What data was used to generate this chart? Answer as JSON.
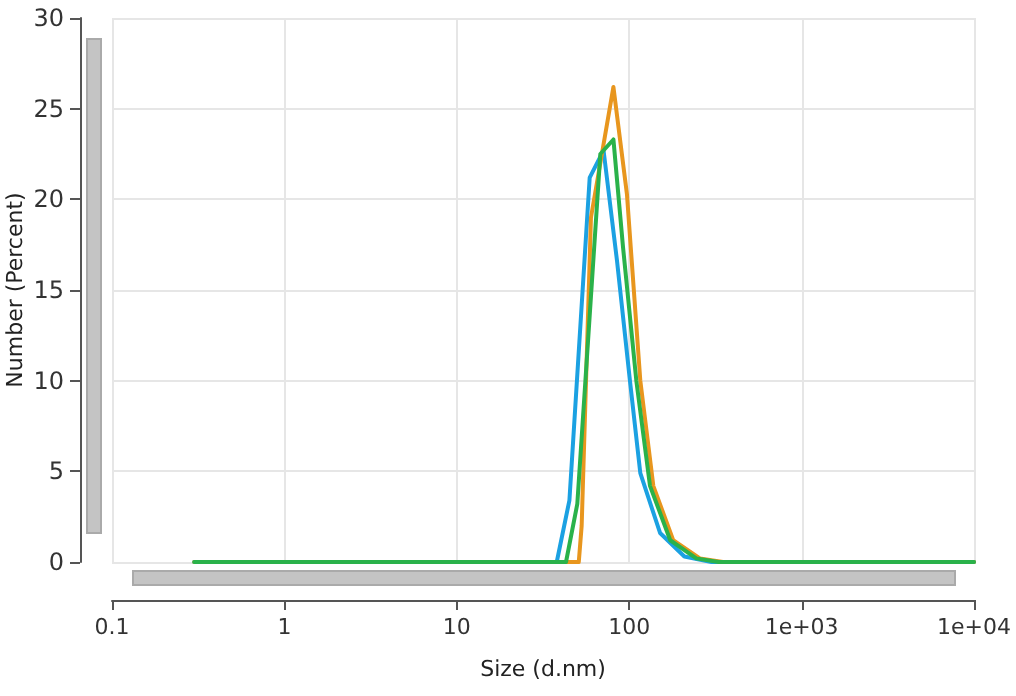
{
  "chart_data": {
    "type": "line",
    "xlabel": "Size (d.nm)",
    "ylabel": "Number (Percent)",
    "log": "x",
    "xlim": [
      0.1,
      10000
    ],
    "ylim": [
      0,
      30
    ],
    "xticks": [
      0.1,
      1,
      10,
      100,
      {
        "value": 1000,
        "label": "1e+03"
      },
      {
        "value": 10000,
        "label": "1e+04"
      }
    ],
    "yticks": [
      0,
      5,
      10,
      15,
      20,
      25,
      30
    ],
    "grid": true,
    "marker": "none",
    "line_style": "solid",
    "series": [
      {
        "color": "#1ba1e2",
        "x": [
          0.3,
          38,
          45,
          59,
          71,
          85,
          101,
          116,
          151,
          209,
          300,
          10000
        ],
        "values": [
          0,
          0,
          3.4,
          21.2,
          22.7,
          16.6,
          10,
          4.9,
          1.6,
          0.3,
          0,
          0
        ]
      },
      {
        "color": "#e8961e",
        "x": [
          0.3,
          51,
          53,
          60,
          81,
          97,
          116,
          138,
          180,
          257,
          350,
          10000
        ],
        "values": [
          0,
          0,
          2,
          19,
          26.2,
          20.3,
          10,
          4.2,
          1.2,
          0.2,
          0,
          0
        ]
      },
      {
        "color": "#2ab24a",
        "x": [
          0.3,
          43,
          50,
          68,
          81,
          92,
          110,
          132,
          173,
          245,
          330,
          10000
        ],
        "values": [
          0,
          0,
          3.2,
          22.5,
          23.3,
          17.4,
          10,
          4.2,
          1.2,
          0.2,
          0,
          0
        ]
      }
    ]
  }
}
